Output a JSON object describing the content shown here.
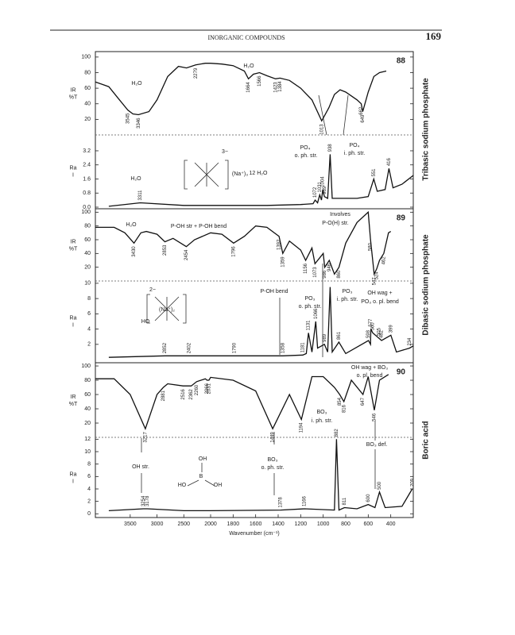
{
  "header": {
    "title": "INORGANIC COMPOUNDS",
    "page": "169"
  },
  "axis": {
    "xlim": [
      4150,
      200
    ],
    "scale_break": 2000,
    "xticks": [
      3500,
      3000,
      2500,
      2000,
      1800,
      1600,
      1400,
      1200,
      1000,
      800,
      600,
      400
    ],
    "label": "Wavenumber (cm⁻¹)"
  },
  "chart_data": [
    {
      "type": "line",
      "number": "88",
      "name": "Tribasic sodium phosphate",
      "ir_axis_label": [
        "IR",
        "%T"
      ],
      "raman_axis_label": [
        "Ra",
        "I"
      ],
      "ir_ylim": [
        0,
        107
      ],
      "ir_yticks": [
        20,
        40,
        60,
        80,
        100
      ],
      "raman_ylim": [
        0,
        4.1
      ],
      "raman_yticks": [
        {
          "value": 0,
          "label": "0.0"
        },
        {
          "value": 0.8,
          "label": "0.8"
        },
        {
          "value": 1.6,
          "label": "1.6"
        },
        {
          "value": 2.4,
          "label": "2.4"
        },
        {
          "value": 3.2,
          "label": "3.2"
        }
      ],
      "ir": {
        "x": [
          4150,
          3900,
          3700,
          3545,
          3450,
          3346,
          3150,
          3000,
          2800,
          2600,
          2450,
          2279,
          2100,
          2000,
          1900,
          1800,
          1700,
          1664,
          1620,
          1566,
          1500,
          1423,
          1384,
          1300,
          1200,
          1100,
          1013,
          950,
          900,
          850,
          800,
          700,
          662,
          649,
          600,
          550,
          500,
          440
        ],
        "values": [
          68,
          62,
          45,
          32,
          27,
          26,
          30,
          45,
          75,
          88,
          86,
          90,
          92,
          92,
          91,
          89,
          82,
          72,
          78,
          80,
          76,
          72,
          73,
          70,
          60,
          45,
          18,
          35,
          52,
          58,
          55,
          45,
          40,
          30,
          55,
          75,
          80,
          82
        ]
      },
      "raman": {
        "x": [
          3900,
          3311,
          2500,
          2000,
          1500,
          1200,
          1090,
          1072,
          1050,
          1031,
          1015,
          1004,
          989,
          960,
          938,
          920,
          700,
          600,
          551,
          520,
          450,
          416,
          380,
          300,
          200
        ],
        "values": [
          0.05,
          0.25,
          0.1,
          0.1,
          0.1,
          0.15,
          0.2,
          0.4,
          0.25,
          0.7,
          0.4,
          1.0,
          0.6,
          0.5,
          3.0,
          0.5,
          0.5,
          0.6,
          1.6,
          0.9,
          1.0,
          2.2,
          1.1,
          1.3,
          1.8
        ]
      },
      "ir_peaks": [
        3545,
        3346,
        2279,
        1664,
        1566,
        1423,
        1384,
        1013,
        662,
        649
      ],
      "raman_peaks": [
        3311,
        1072,
        1031,
        1004,
        989,
        938,
        551,
        416
      ],
      "annotations": [
        "H₂O",
        "H₂O",
        "3−",
        "(Na⁺)₃",
        "12 H₂O",
        "H₂O",
        "PO₄",
        "o. ph. str.",
        "PO₄",
        "i. ph. str."
      ]
    },
    {
      "type": "line",
      "number": "89",
      "name": "Dibasic sodium phosphate",
      "ir_axis_label": [
        "IR",
        "%T"
      ],
      "raman_axis_label": [
        "Ra",
        "I"
      ],
      "ir_ylim": [
        0,
        105
      ],
      "ir_yticks": [
        20,
        40,
        60,
        80,
        100
      ],
      "raman_ylim": [
        -0.2,
        10.3
      ],
      "raman_yticks": [
        2,
        4,
        6,
        8,
        10
      ],
      "ir": {
        "x": [
          4150,
          3800,
          3600,
          3430,
          3300,
          3200,
          3000,
          2853,
          2700,
          2454,
          2300,
          2000,
          1900,
          1796,
          1700,
          1600,
          1500,
          1392,
          1359,
          1300,
          1200,
          1156,
          1100,
          1073,
          1000,
          986,
          946,
          900,
          860,
          800,
          700,
          600,
          580,
          547,
          524,
          500,
          462,
          420,
          400
        ],
        "values": [
          78,
          78,
          70,
          55,
          70,
          72,
          68,
          57,
          62,
          50,
          60,
          70,
          68,
          55,
          65,
          80,
          78,
          65,
          40,
          58,
          45,
          30,
          48,
          25,
          40,
          20,
          30,
          10,
          20,
          55,
          85,
          100,
          60,
          10,
          18,
          30,
          40,
          70,
          72
        ]
      },
      "raman": {
        "x": [
          3900,
          2852,
          2402,
          1790,
          1358,
          1181,
          1150,
          1131,
          1100,
          1066,
          1050,
          989,
          960,
          938,
          920,
          861,
          800,
          598,
          580,
          577,
          560,
          505,
          482,
          399,
          350,
          234,
          200
        ],
        "values": [
          0.3,
          0.5,
          0.5,
          0.5,
          0.5,
          0.6,
          0.8,
          3.5,
          1.0,
          5,
          1.5,
          2.0,
          1.0,
          9.5,
          1.0,
          2.3,
          0.8,
          2.5,
          2.0,
          4.0,
          3.5,
          2.8,
          2.5,
          3.2,
          1.0,
          1.5,
          1.8
        ]
      },
      "ir_peaks": [
        3430,
        2853,
        2454,
        1796,
        1392,
        1359,
        1156,
        1073,
        986,
        946,
        860,
        580,
        547,
        524,
        462
      ],
      "raman_peaks": [
        2852,
        2402,
        1790,
        1358,
        1181,
        1131,
        1066,
        989,
        861,
        598,
        577,
        560,
        505,
        482,
        399,
        234
      ],
      "annotations": [
        "H₂O",
        "P-OH str + P-OH bend",
        "Involves",
        "P-O(H) str.",
        "P-OH bend",
        "PO₃",
        "o. ph. str.",
        "PO₃",
        "i. ph. str.",
        "OH wag +",
        "PO₃ o. pl. bend",
        "2−",
        "(Na⁺)₂",
        "HO"
      ]
    },
    {
      "type": "line",
      "number": "90",
      "name": "Boric acid",
      "ir_axis_label": [
        "IR",
        "%T"
      ],
      "raman_axis_label": [
        "Ra",
        "I"
      ],
      "ir_ylim": [
        0,
        104.5
      ],
      "ir_yticks": [
        20,
        40,
        60,
        80,
        100
      ],
      "raman_ylim": [
        -0.6,
        12.3
      ],
      "raman_yticks": [
        0,
        2,
        4,
        6,
        8,
        10,
        12
      ],
      "ir": {
        "x": [
          4150,
          3800,
          3500,
          3217,
          3000,
          2881,
          2800,
          2516,
          2362,
          2260,
          2100,
          2066,
          2031,
          2000,
          1800,
          1600,
          1449,
          1300,
          1194,
          1100,
          1000,
          900,
          854,
          816,
          750,
          647,
          600,
          546,
          500,
          420
        ],
        "values": [
          82,
          82,
          60,
          12,
          60,
          70,
          75,
          72,
          72,
          78,
          82,
          80,
          80,
          84,
          80,
          65,
          12,
          60,
          25,
          85,
          85,
          70,
          60,
          50,
          80,
          60,
          85,
          38,
          80,
          88
        ]
      },
      "raman": {
        "x": [
          3900,
          3254,
          3178,
          2500,
          2000,
          1378,
          1166,
          900,
          882,
          860,
          811,
          700,
          600,
          540,
          500,
          450,
          300,
          209
        ],
        "values": [
          0.5,
          0.8,
          0.8,
          0.5,
          0.5,
          0.6,
          0.8,
          0.6,
          12,
          0.6,
          1.0,
          0.8,
          1.5,
          1.0,
          3.5,
          1.0,
          1.2,
          4.0
        ]
      },
      "ir_peaks": [
        3217,
        2881,
        2516,
        2362,
        2260,
        2066,
        2031,
        1449,
        1194,
        854,
        816,
        647,
        546
      ],
      "raman_peaks": [
        3254,
        3178,
        1378,
        1166,
        882,
        811,
        600,
        500,
        209
      ],
      "annotations": [
        "OH wag + BO₃",
        "o. pl. bend",
        "BO₃",
        "i. ph. str.",
        "BO₃ def.",
        "OH str.",
        "BO₃",
        "o. ph. str.",
        "OH",
        "B",
        "HO",
        "OH"
      ]
    }
  ]
}
